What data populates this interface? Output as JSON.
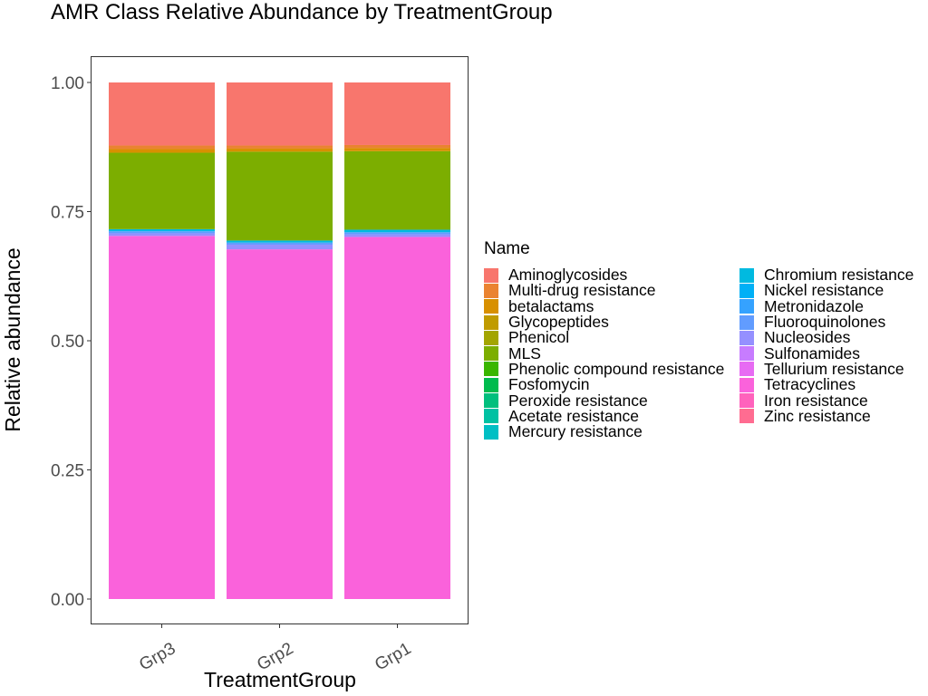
{
  "chart_data": {
    "type": "bar",
    "stacked": true,
    "title": "AMR Class Relative Abundance by TreatmentGroup",
    "xlabel": "TreatmentGroup",
    "ylabel": "Relative abundance",
    "ylim": [
      0,
      1.05
    ],
    "y_ticks": [
      "0.00",
      "0.25",
      "0.50",
      "0.75",
      "1.00"
    ],
    "categories": [
      "Grp3",
      "Grp2",
      "Grp1"
    ],
    "grid": false,
    "legend_title": "Name",
    "legend_position": "right",
    "series": [
      {
        "name": "Aminoglycosides",
        "color": "#F8766D",
        "values": [
          0.122,
          0.122,
          0.121
        ]
      },
      {
        "name": "Multi-drug resistance",
        "color": "#EA8331",
        "values": [
          0.007,
          0.006,
          0.006
        ]
      },
      {
        "name": "betalactams",
        "color": "#D89000",
        "values": [
          0.007,
          0.006,
          0.006
        ]
      },
      {
        "name": "Glycopeptides",
        "color": "#C09B00",
        "values": [
          0.0,
          0.0,
          0.0
        ]
      },
      {
        "name": "Phenicol",
        "color": "#A3A500",
        "values": [
          0.0,
          0.0,
          0.0
        ]
      },
      {
        "name": "MLS",
        "color": "#7CAE00",
        "values": [
          0.148,
          0.172,
          0.152
        ]
      },
      {
        "name": "Phenolic compound resistance",
        "color": "#39B600",
        "values": [
          0.0,
          0.0,
          0.0
        ]
      },
      {
        "name": "Fosfomycin",
        "color": "#00BB4E",
        "values": [
          0.0,
          0.0,
          0.0
        ]
      },
      {
        "name": "Peroxide resistance",
        "color": "#00BF7D",
        "values": [
          0.0,
          0.0,
          0.0
        ]
      },
      {
        "name": "Acetate resistance",
        "color": "#00C1A3",
        "values": [
          0.0,
          0.0,
          0.0
        ]
      },
      {
        "name": "Mercury resistance",
        "color": "#00BFC4",
        "values": [
          0.0,
          0.0,
          0.0
        ]
      },
      {
        "name": "Chromium resistance",
        "color": "#00BAE0",
        "values": [
          0.004,
          0.004,
          0.005
        ]
      },
      {
        "name": "Nickel resistance",
        "color": "#00B0F6",
        "values": [
          0.0,
          0.0,
          0.0
        ]
      },
      {
        "name": "Metronidazole",
        "color": "#35A2FF",
        "values": [
          0.0,
          0.0,
          0.0
        ]
      },
      {
        "name": "Fluoroquinolones",
        "color": "#619CFF",
        "values": [
          0.004,
          0.004,
          0.004
        ]
      },
      {
        "name": "Nucleosides",
        "color": "#9590FF",
        "values": [
          0.005,
          0.009,
          0.005
        ]
      },
      {
        "name": "Sulfonamides",
        "color": "#C77CFF",
        "values": [
          0.0,
          0.0,
          0.0
        ]
      },
      {
        "name": "Tellurium resistance",
        "color": "#E76BF3",
        "values": [
          0.0,
          0.0,
          0.0
        ]
      },
      {
        "name": "Tetracyclines",
        "color": "#FA62DB",
        "values": [
          0.703,
          0.677,
          0.701
        ]
      },
      {
        "name": "Iron resistance",
        "color": "#FF62BC",
        "values": [
          0.0,
          0.0,
          0.0
        ]
      },
      {
        "name": "Zinc resistance",
        "color": "#FF6C91",
        "values": [
          0.0,
          0.0,
          0.0
        ]
      }
    ]
  }
}
